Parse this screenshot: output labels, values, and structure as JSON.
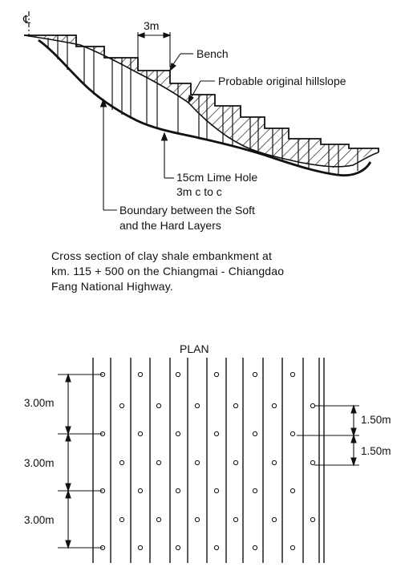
{
  "section": {
    "centerline_symbol": "℄",
    "bench_spacing_label": "3m",
    "bench_label": "Bench",
    "hillslope_label": "Probable original hillslope",
    "lime_hole_label_1": "15cm Lime Hole",
    "lime_hole_label_2": "3m c to c",
    "boundary_label_1": "Boundary between the Soft",
    "boundary_label_2": "and the Hard Layers"
  },
  "caption": {
    "line1": "Cross section of clay shale embankment at",
    "line2": "km. 115 + 500 on the Chiangmai - Chiangdao",
    "line3": "Fang National Highway."
  },
  "plan": {
    "title": "PLAN",
    "left_dims": [
      "3.00m",
      "3.00m",
      "3.00m"
    ],
    "right_dims": [
      "1.50m",
      "1.50m"
    ]
  },
  "colors": {
    "ink": "#111111",
    "paper": "#ffffff"
  }
}
